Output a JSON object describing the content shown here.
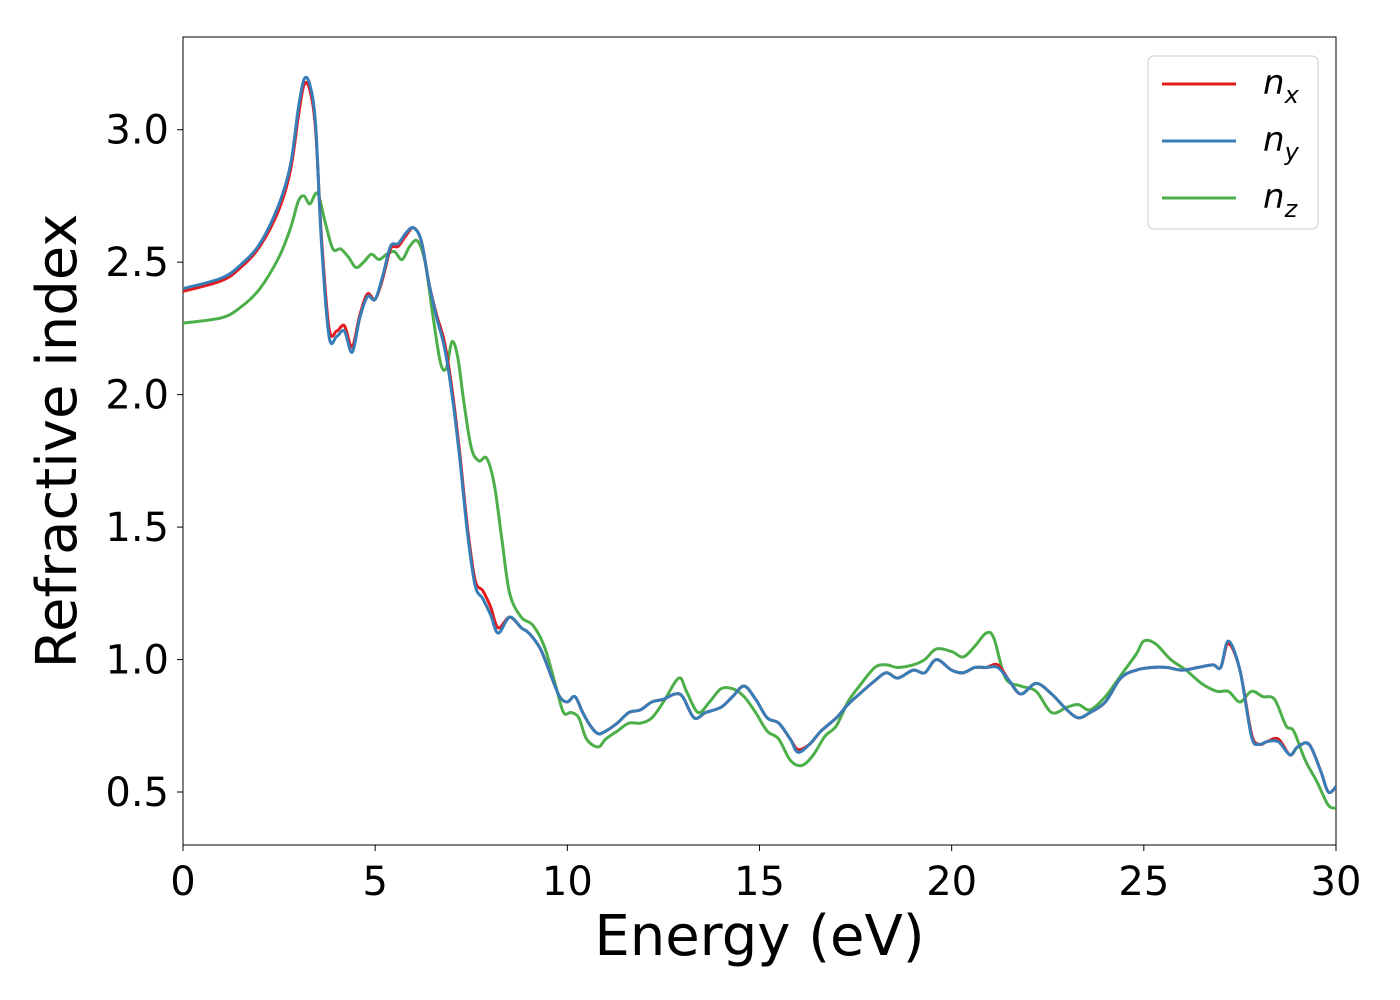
{
  "chart_data": {
    "type": "line",
    "xlabel": "Energy (eV)",
    "ylabel": "Refractive index",
    "xlim": [
      0,
      30
    ],
    "ylim": [
      0.3,
      3.35
    ],
    "xticks": [
      0,
      5,
      10,
      15,
      20,
      25,
      30
    ],
    "xtick_labels": [
      "0",
      "5",
      "10",
      "15",
      "20",
      "25",
      "30"
    ],
    "yticks": [
      0.5,
      1.0,
      1.5,
      2.0,
      2.5,
      3.0
    ],
    "ytick_labels": [
      "0.5",
      "1.0",
      "1.5",
      "2.0",
      "2.5",
      "3.0"
    ],
    "grid": false,
    "legend_position": "top-right",
    "series": [
      {
        "name": "n_x",
        "legend_base": "n",
        "legend_sub": "x",
        "color": "#e41a1c",
        "x": [
          0,
          1,
          1.5,
          2,
          2.5,
          2.8,
          3.0,
          3.15,
          3.3,
          3.45,
          3.6,
          3.8,
          4.0,
          4.2,
          4.4,
          4.6,
          4.8,
          5.0,
          5.2,
          5.4,
          5.6,
          5.8,
          6.0,
          6.2,
          6.4,
          6.6,
          6.8,
          7.0,
          7.2,
          7.4,
          7.6,
          7.8,
          8.0,
          8.2,
          8.5,
          8.8,
          9.0,
          9.3,
          9.6,
          9.8,
          10.0,
          10.2,
          10.4,
          10.6,
          10.8,
          11.0,
          11.3,
          11.6,
          11.9,
          12.2,
          12.5,
          12.8,
          13.0,
          13.3,
          13.6,
          14.0,
          14.3,
          14.6,
          14.9,
          15.2,
          15.5,
          15.8,
          16.0,
          16.3,
          16.6,
          17.0,
          17.3,
          17.6,
          18.0,
          18.3,
          18.6,
          19.0,
          19.3,
          19.6,
          20.0,
          20.3,
          20.6,
          20.9,
          21.2,
          21.5,
          21.8,
          22.2,
          22.6,
          23.0,
          23.3,
          23.6,
          24.0,
          24.4,
          24.8,
          25.2,
          25.6,
          26.0,
          26.4,
          26.8,
          27.0,
          27.2,
          27.5,
          27.8,
          28.0,
          28.2,
          28.5,
          28.8,
          29.0,
          29.3,
          29.6,
          29.8,
          30.0
        ],
        "y": [
          2.39,
          2.43,
          2.48,
          2.56,
          2.7,
          2.85,
          3.05,
          3.17,
          3.15,
          3.0,
          2.6,
          2.25,
          2.24,
          2.26,
          2.18,
          2.3,
          2.38,
          2.36,
          2.44,
          2.55,
          2.56,
          2.6,
          2.63,
          2.58,
          2.42,
          2.3,
          2.2,
          2.02,
          1.78,
          1.5,
          1.3,
          1.26,
          1.2,
          1.12,
          1.16,
          1.12,
          1.1,
          1.04,
          0.93,
          0.86,
          0.84,
          0.86,
          0.8,
          0.75,
          0.72,
          0.73,
          0.76,
          0.8,
          0.81,
          0.84,
          0.85,
          0.87,
          0.86,
          0.78,
          0.8,
          0.82,
          0.86,
          0.9,
          0.85,
          0.78,
          0.76,
          0.7,
          0.66,
          0.68,
          0.73,
          0.78,
          0.83,
          0.87,
          0.92,
          0.95,
          0.93,
          0.96,
          0.95,
          1.0,
          0.96,
          0.95,
          0.97,
          0.97,
          0.98,
          0.92,
          0.87,
          0.91,
          0.87,
          0.81,
          0.78,
          0.8,
          0.84,
          0.93,
          0.96,
          0.97,
          0.97,
          0.96,
          0.97,
          0.98,
          0.97,
          1.06,
          0.96,
          0.72,
          0.68,
          0.69,
          0.7,
          0.64,
          0.67,
          0.68,
          0.58,
          0.5,
          0.52
        ]
      },
      {
        "name": "n_y",
        "legend_base": "n",
        "legend_sub": "y",
        "color": "#377eb8",
        "x": [
          0,
          1,
          1.5,
          2,
          2.5,
          2.8,
          3.0,
          3.15,
          3.3,
          3.45,
          3.6,
          3.8,
          4.0,
          4.2,
          4.4,
          4.6,
          4.8,
          5.0,
          5.2,
          5.4,
          5.6,
          5.8,
          6.0,
          6.2,
          6.4,
          6.6,
          6.8,
          7.0,
          7.2,
          7.4,
          7.6,
          7.8,
          8.0,
          8.2,
          8.5,
          8.8,
          9.0,
          9.3,
          9.6,
          9.8,
          10.0,
          10.2,
          10.4,
          10.6,
          10.8,
          11.0,
          11.3,
          11.6,
          11.9,
          12.2,
          12.5,
          12.8,
          13.0,
          13.3,
          13.6,
          14.0,
          14.3,
          14.6,
          14.9,
          15.2,
          15.5,
          15.8,
          16.0,
          16.3,
          16.6,
          17.0,
          17.3,
          17.6,
          18.0,
          18.3,
          18.6,
          19.0,
          19.3,
          19.6,
          20.0,
          20.3,
          20.6,
          20.9,
          21.2,
          21.5,
          21.8,
          22.2,
          22.6,
          23.0,
          23.3,
          23.6,
          24.0,
          24.4,
          24.8,
          25.2,
          25.6,
          26.0,
          26.4,
          26.8,
          27.0,
          27.2,
          27.5,
          27.8,
          28.0,
          28.2,
          28.5,
          28.8,
          29.0,
          29.3,
          29.6,
          29.8,
          30.0
        ],
        "y": [
          2.4,
          2.44,
          2.49,
          2.57,
          2.72,
          2.87,
          3.08,
          3.19,
          3.17,
          3.02,
          2.58,
          2.22,
          2.22,
          2.24,
          2.16,
          2.29,
          2.37,
          2.36,
          2.45,
          2.56,
          2.57,
          2.61,
          2.63,
          2.58,
          2.42,
          2.29,
          2.18,
          2.0,
          1.76,
          1.48,
          1.28,
          1.23,
          1.17,
          1.1,
          1.16,
          1.12,
          1.1,
          1.04,
          0.93,
          0.86,
          0.84,
          0.86,
          0.8,
          0.75,
          0.72,
          0.73,
          0.76,
          0.8,
          0.81,
          0.84,
          0.85,
          0.87,
          0.86,
          0.78,
          0.8,
          0.82,
          0.86,
          0.9,
          0.85,
          0.78,
          0.76,
          0.7,
          0.65,
          0.68,
          0.73,
          0.78,
          0.83,
          0.87,
          0.92,
          0.95,
          0.93,
          0.96,
          0.95,
          1.0,
          0.96,
          0.95,
          0.97,
          0.97,
          0.97,
          0.92,
          0.87,
          0.91,
          0.87,
          0.81,
          0.78,
          0.8,
          0.84,
          0.93,
          0.96,
          0.97,
          0.97,
          0.96,
          0.97,
          0.98,
          0.97,
          1.07,
          0.96,
          0.71,
          0.68,
          0.69,
          0.69,
          0.64,
          0.67,
          0.68,
          0.58,
          0.5,
          0.52
        ]
      },
      {
        "name": "n_z",
        "legend_base": "n",
        "legend_sub": "z",
        "color": "#4daf4a",
        "x": [
          0,
          1,
          1.5,
          2,
          2.5,
          2.8,
          3.0,
          3.15,
          3.3,
          3.5,
          3.7,
          3.9,
          4.1,
          4.3,
          4.5,
          4.7,
          4.9,
          5.1,
          5.3,
          5.5,
          5.7,
          5.9,
          6.1,
          6.3,
          6.5,
          6.7,
          6.85,
          7.0,
          7.15,
          7.3,
          7.5,
          7.7,
          7.9,
          8.1,
          8.3,
          8.5,
          8.8,
          9.1,
          9.4,
          9.7,
          9.9,
          10.1,
          10.3,
          10.5,
          10.8,
          11.0,
          11.3,
          11.6,
          11.9,
          12.2,
          12.5,
          12.9,
          13.1,
          13.4,
          13.7,
          14.0,
          14.3,
          14.6,
          14.9,
          15.2,
          15.5,
          15.8,
          16.1,
          16.4,
          16.7,
          17.0,
          17.3,
          17.6,
          18.0,
          18.3,
          18.6,
          19.0,
          19.3,
          19.6,
          20.0,
          20.3,
          20.6,
          20.9,
          21.1,
          21.4,
          21.8,
          22.2,
          22.6,
          23.0,
          23.3,
          23.6,
          24.0,
          24.4,
          24.8,
          25.0,
          25.3,
          25.7,
          26.1,
          26.5,
          26.9,
          27.2,
          27.5,
          27.8,
          28.1,
          28.4,
          28.7,
          28.9,
          29.2,
          29.5,
          29.8,
          30.0
        ],
        "y": [
          2.27,
          2.29,
          2.33,
          2.4,
          2.52,
          2.63,
          2.73,
          2.75,
          2.72,
          2.76,
          2.65,
          2.55,
          2.55,
          2.52,
          2.48,
          2.5,
          2.53,
          2.51,
          2.53,
          2.54,
          2.51,
          2.56,
          2.58,
          2.5,
          2.3,
          2.12,
          2.1,
          2.2,
          2.14,
          1.98,
          1.8,
          1.75,
          1.76,
          1.66,
          1.45,
          1.25,
          1.16,
          1.13,
          1.05,
          0.9,
          0.8,
          0.8,
          0.78,
          0.7,
          0.67,
          0.7,
          0.73,
          0.76,
          0.76,
          0.78,
          0.84,
          0.93,
          0.88,
          0.8,
          0.84,
          0.89,
          0.89,
          0.86,
          0.8,
          0.73,
          0.7,
          0.62,
          0.6,
          0.64,
          0.71,
          0.75,
          0.84,
          0.9,
          0.97,
          0.98,
          0.97,
          0.98,
          1.0,
          1.04,
          1.03,
          1.01,
          1.05,
          1.1,
          1.08,
          0.93,
          0.9,
          0.88,
          0.8,
          0.82,
          0.83,
          0.81,
          0.86,
          0.94,
          1.02,
          1.07,
          1.06,
          1.0,
          0.96,
          0.91,
          0.88,
          0.88,
          0.84,
          0.88,
          0.86,
          0.85,
          0.75,
          0.73,
          0.62,
          0.54,
          0.45,
          0.44
        ]
      }
    ]
  }
}
